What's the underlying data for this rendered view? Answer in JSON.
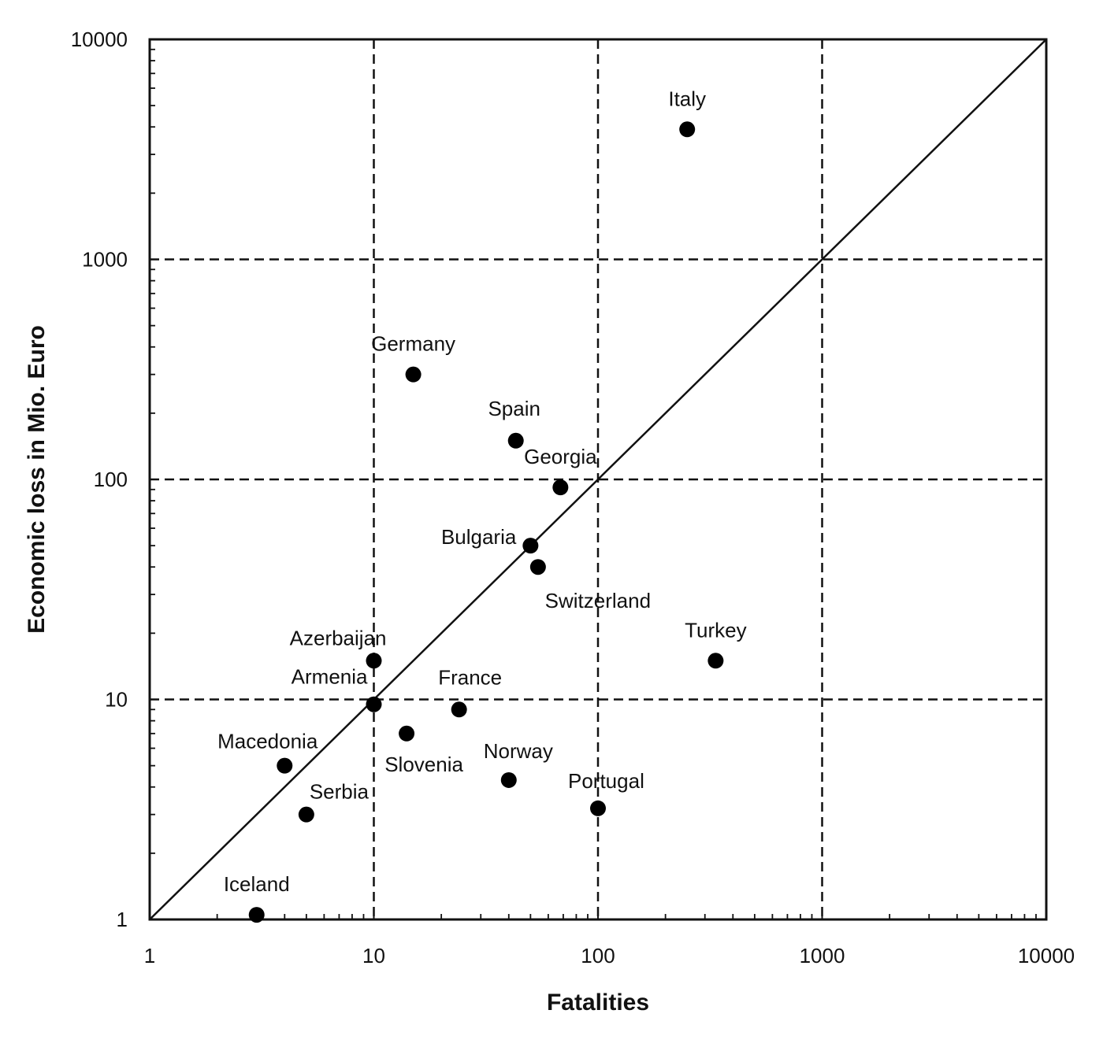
{
  "chart_data": {
    "type": "scatter",
    "xlabel": "Fatalities",
    "ylabel": "Economic loss in Mio. Euro",
    "x_scale": "log",
    "y_scale": "log",
    "xlim": [
      1,
      10000
    ],
    "ylim": [
      1,
      10000
    ],
    "x_ticks": [
      "1",
      "10",
      "100",
      "1000",
      "10000"
    ],
    "y_ticks": [
      "1",
      "10",
      "100",
      "1000",
      "10000"
    ],
    "grid": "dashed major gridlines",
    "reference_line": {
      "from": [
        1,
        1
      ],
      "to": [
        10000,
        10000
      ]
    },
    "points": [
      {
        "label": "Italy",
        "x": 250,
        "y": 3900,
        "label_pos": "above"
      },
      {
        "label": "Germany",
        "x": 15,
        "y": 300,
        "label_pos": "above"
      },
      {
        "label": "Spain",
        "x": 43,
        "y": 150,
        "label_pos": "above"
      },
      {
        "label": "Georgia",
        "x": 68,
        "y": 92,
        "label_pos": "above"
      },
      {
        "label": "Bulgaria",
        "x": 50,
        "y": 50,
        "label_pos": "left"
      },
      {
        "label": "Switzerland",
        "x": 54,
        "y": 40,
        "label_pos": "below"
      },
      {
        "label": "Turkey",
        "x": 335,
        "y": 15,
        "label_pos": "above"
      },
      {
        "label": "Azerbaijan",
        "x": 10,
        "y": 15,
        "label_pos": "above-left"
      },
      {
        "label": "Armenia",
        "x": 10,
        "y": 9.5,
        "label_pos": "above-left"
      },
      {
        "label": "France",
        "x": 24,
        "y": 9,
        "label_pos": "above"
      },
      {
        "label": "Slovenia",
        "x": 14,
        "y": 7,
        "label_pos": "below"
      },
      {
        "label": "Macedonia",
        "x": 4,
        "y": 5,
        "label_pos": "above-left"
      },
      {
        "label": "Norway",
        "x": 40,
        "y": 4.3,
        "label_pos": "above"
      },
      {
        "label": "Serbia",
        "x": 5,
        "y": 3,
        "label_pos": "above-right"
      },
      {
        "label": "Portugal",
        "x": 100,
        "y": 3.2,
        "label_pos": "above-right"
      },
      {
        "label": "Iceland",
        "x": 3,
        "y": 1.05,
        "label_pos": "above"
      }
    ]
  }
}
